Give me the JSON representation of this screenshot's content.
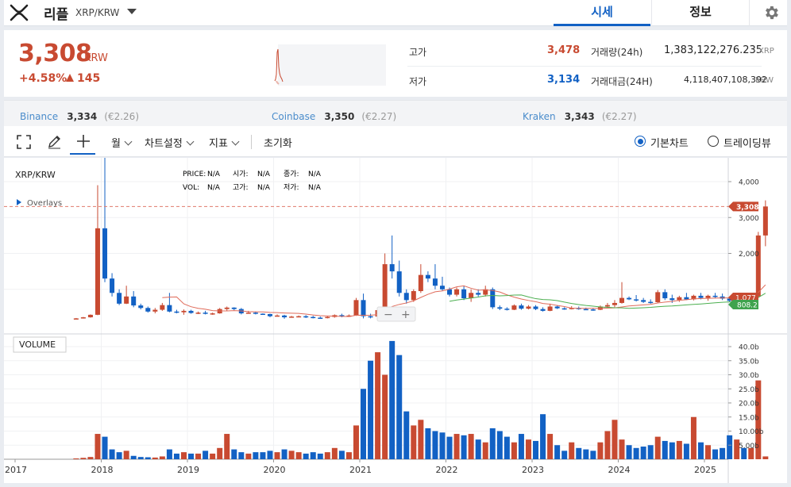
{
  "header": {
    "coin_name": "리플",
    "pair": "XRP/KRW",
    "logo_icon": "xrp-logo-icon",
    "tabs": [
      {
        "label": "시세",
        "active": true
      },
      {
        "label": "정보",
        "active": false
      }
    ],
    "settings_icon": "gear-icon"
  },
  "price": {
    "current": "3,308",
    "unit": "KRW",
    "change_pct": "+4.58%",
    "change_amt": "145",
    "direction_icon": "triangle-up-icon",
    "color_up": "#c84a31",
    "color_down": "#1261c4"
  },
  "stats": {
    "high_label": "고가",
    "high_value": "3,478",
    "low_label": "저가",
    "low_value": "3,134",
    "volume_label": "거래량(24h)",
    "volume_value": "1,383,122,276.235",
    "volume_unit": "XRP",
    "amount_label": "거래대금(24H)",
    "amount_value": "4,118,407,108,392",
    "amount_unit": "KRW"
  },
  "exchanges": [
    {
      "name": "Binance",
      "price": "3,334",
      "eur": "(€2.26)"
    },
    {
      "name": "Coinbase",
      "price": "3,350",
      "eur": "(€2.27)"
    },
    {
      "name": "Kraken",
      "price": "3,343",
      "eur": "(€2.27)"
    }
  ],
  "toolbar": {
    "fullscreen_icon": "fullscreen-icon",
    "draw_icon": "pencil-icon",
    "crosshair_icon": "crosshair-icon",
    "period_label": "월",
    "settings_label": "차트설정",
    "indicator_label": "지표",
    "reset_label": "초기화",
    "mode_basic": "기본차트",
    "mode_trading": "트레이딩뷰",
    "selected_mode": "기본차트"
  },
  "chart": {
    "symbol": "XRP/KRW",
    "overlays_label": "Overlays",
    "legend": {
      "price_label": "PRICE:",
      "price_value": "N/A",
      "open_label": "시가:",
      "open_value": "N/A",
      "close_label": "종가:",
      "close_value": "N/A",
      "vol_label": "VOL:",
      "vol_value": "N/A",
      "high_label": "고가:",
      "high_value": "N/A",
      "low_label": "저가:",
      "low_value": "N/A"
    },
    "volume_label": "VOLUME",
    "zoom_out": "−",
    "zoom_in": "+",
    "current_price_tag": "3,308",
    "ma_tag_1": "1,077",
    "ma_tag_2": "808.2",
    "price_ticks": [
      "4,000",
      "3,000",
      "2,000"
    ],
    "volume_ticks": [
      "40.0b",
      "35.0b",
      "30.0b",
      "25.0b",
      "20.0b",
      "15.0b",
      "10.00b",
      "5.00b"
    ],
    "x_ticks": [
      "2017",
      "2018",
      "2019",
      "2020",
      "2021",
      "2022",
      "2023",
      "2024",
      "2025"
    ],
    "up_color": "#c84a31",
    "down_color": "#1261c4",
    "ma_red_color": "#e06b5a",
    "ma_green_color": "#4caf50"
  },
  "chart_data": {
    "type": "candlestick",
    "interval": "monthly",
    "y_ticks": [
      2000,
      3000,
      4000
    ],
    "volume_unit": "b",
    "volume_ticks": [
      5,
      10,
      15,
      20,
      25,
      30,
      35,
      40
    ],
    "series": [
      {
        "start": "2017-09",
        "candles": [
          [
            180,
            200,
            170,
            190,
            0.3
          ],
          [
            190,
            230,
            185,
            220,
            0.5
          ],
          [
            220,
            300,
            210,
            290,
            0.8
          ],
          [
            290,
            3900,
            280,
            2700,
            9.0
          ],
          [
            2700,
            4830,
            1200,
            1300,
            8.0
          ],
          [
            1300,
            1450,
            800,
            900,
            3.5
          ],
          [
            900,
            1000,
            560,
            600,
            2.5
          ],
          [
            600,
            1100,
            590,
            800,
            3.0
          ],
          [
            800,
            950,
            500,
            550,
            1.2
          ],
          [
            550,
            600,
            440,
            480,
            0.8
          ],
          [
            480,
            520,
            350,
            380,
            0.7
          ],
          [
            380,
            480,
            330,
            430,
            0.6
          ],
          [
            430,
            620,
            400,
            560,
            1.0
          ],
          [
            560,
            900,
            360,
            380,
            3.5
          ],
          [
            380,
            430,
            330,
            360,
            2.0
          ],
          [
            360,
            440,
            290,
            400,
            2.5
          ],
          [
            400,
            430,
            320,
            340,
            2.0
          ],
          [
            340,
            380,
            310,
            350,
            2.0
          ],
          [
            350,
            400,
            300,
            320,
            3.0
          ],
          [
            320,
            350,
            290,
            330,
            2.0
          ],
          [
            330,
            480,
            320,
            450,
            4.0
          ],
          [
            450,
            520,
            400,
            490,
            9.0
          ],
          [
            490,
            500,
            420,
            450,
            3.5
          ],
          [
            450,
            480,
            300,
            330,
            2.5
          ],
          [
            330,
            400,
            320,
            350,
            2.0
          ],
          [
            350,
            380,
            300,
            320,
            2.5
          ],
          [
            320,
            330,
            290,
            310,
            2.5
          ],
          [
            310,
            320,
            220,
            250,
            3.0
          ],
          [
            250,
            300,
            240,
            270,
            2.5
          ],
          [
            270,
            290,
            180,
            220,
            3.5
          ],
          [
            220,
            260,
            210,
            240,
            3.0
          ],
          [
            240,
            270,
            220,
            250,
            2.5
          ],
          [
            250,
            280,
            200,
            230,
            2.0
          ],
          [
            230,
            260,
            190,
            210,
            2.5
          ],
          [
            210,
            240,
            180,
            200,
            2.0
          ],
          [
            200,
            250,
            190,
            230,
            2.5
          ],
          [
            230,
            300,
            210,
            280,
            4.0
          ],
          [
            280,
            320,
            220,
            250,
            3.0
          ],
          [
            250,
            300,
            230,
            270,
            2.5
          ],
          [
            270,
            760,
            260,
            700,
            12.0
          ],
          [
            700,
            880,
            190,
            250,
            25.0
          ],
          [
            250,
            320,
            190,
            240,
            35.0
          ],
          [
            240,
            450,
            220,
            420,
            38.0
          ],
          [
            420,
            2000,
            400,
            1700,
            30.0
          ],
          [
            1700,
            2500,
            1300,
            1500,
            42.0
          ],
          [
            1500,
            1800,
            800,
            900,
            37.0
          ],
          [
            900,
            1000,
            600,
            700,
            17.0
          ],
          [
            700,
            1000,
            650,
            950,
            12.0
          ],
          [
            950,
            1700,
            900,
            1400,
            14.0
          ],
          [
            1400,
            1500,
            1200,
            1300,
            11.0
          ],
          [
            1300,
            1700,
            1000,
            1100,
            10.0
          ],
          [
            1100,
            1350,
            950,
            1000,
            9.5
          ],
          [
            1000,
            1050,
            800,
            850,
            8.0
          ],
          [
            850,
            1050,
            800,
            1000,
            9.0
          ],
          [
            1000,
            1100,
            700,
            750,
            8.5
          ],
          [
            750,
            1000,
            650,
            900,
            9.0
          ],
          [
            900,
            1000,
            800,
            850,
            7.0
          ],
          [
            850,
            1100,
            800,
            1000,
            6.0
          ],
          [
            1000,
            1050,
            450,
            500,
            11.0
          ],
          [
            500,
            550,
            420,
            460,
            10.0
          ],
          [
            460,
            500,
            410,
            430,
            8.0
          ],
          [
            430,
            580,
            420,
            550,
            6.0
          ],
          [
            550,
            600,
            430,
            460,
            9.0
          ],
          [
            460,
            560,
            440,
            520,
            7.0
          ],
          [
            520,
            560,
            420,
            450,
            6.5
          ],
          [
            450,
            500,
            380,
            400,
            16.0
          ],
          [
            400,
            600,
            390,
            520,
            9.0
          ],
          [
            520,
            550,
            450,
            470,
            5.0
          ],
          [
            470,
            500,
            430,
            460,
            3.0
          ],
          [
            460,
            530,
            440,
            480,
            6.0
          ],
          [
            480,
            520,
            430,
            450,
            4.0
          ],
          [
            450,
            490,
            420,
            440,
            3.5
          ],
          [
            440,
            480,
            400,
            430,
            3.0
          ],
          [
            430,
            550,
            420,
            520,
            6.0
          ],
          [
            520,
            620,
            480,
            560,
            10.0
          ],
          [
            560,
            700,
            500,
            620,
            14.0
          ],
          [
            620,
            1200,
            600,
            760,
            7.0
          ],
          [
            760,
            800,
            700,
            720,
            5.0
          ],
          [
            720,
            840,
            660,
            700,
            4.0
          ],
          [
            700,
            760,
            620,
            650,
            4.5
          ],
          [
            650,
            720,
            600,
            640,
            5.0
          ],
          [
            640,
            980,
            620,
            920,
            8.0
          ],
          [
            920,
            1000,
            700,
            750,
            6.5
          ],
          [
            750,
            850,
            620,
            700,
            6.0
          ],
          [
            700,
            820,
            650,
            780,
            6.5
          ],
          [
            780,
            900,
            700,
            720,
            5.5
          ],
          [
            720,
            850,
            690,
            820,
            15.0
          ],
          [
            820,
            900,
            720,
            760,
            6.0
          ],
          [
            760,
            850,
            680,
            820,
            5.0
          ],
          [
            820,
            900,
            760,
            800,
            3.5
          ],
          [
            800,
            880,
            700,
            740,
            4.0
          ],
          [
            740,
            800,
            650,
            680,
            8.5
          ],
          [
            680,
            820,
            600,
            780,
            7.0
          ],
          [
            780,
            820,
            700,
            760,
            4.0
          ],
          [
            760,
            900,
            740,
            800,
            4.0
          ],
          [
            800,
            2600,
            780,
            2500,
            28.0
          ],
          [
            2500,
            3478,
            2200,
            3308,
            1.0
          ]
        ]
      }
    ]
  }
}
